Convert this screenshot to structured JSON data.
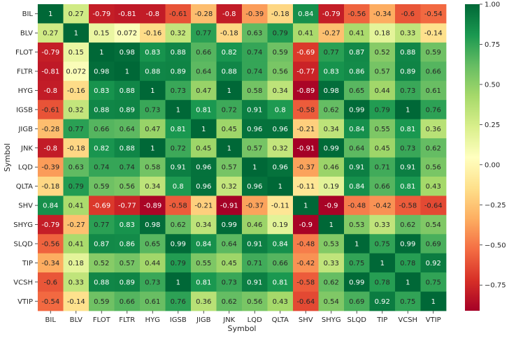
{
  "chart_data": {
    "type": "heatmap",
    "title": "",
    "xlabel": "Symbol",
    "ylabel": "Symbol",
    "categories": [
      "BIL",
      "BLV",
      "FLOT",
      "FLTR",
      "HYG",
      "IGSB",
      "JIGB",
      "JNK",
      "LQD",
      "QLTA",
      "SHV",
      "SHYG",
      "SLQD",
      "TIP",
      "VCSH",
      "VTIP"
    ],
    "values": [
      [
        "1",
        "0.27",
        "-0.79",
        "-0.81",
        "-0.8",
        "-0.61",
        "-0.28",
        "-0.8",
        "-0.39",
        "-0.18",
        "0.84",
        "-0.79",
        "-0.56",
        "-0.34",
        "-0.6",
        "-0.54"
      ],
      [
        "0.27",
        "1",
        "0.15",
        "0.072",
        "-0.16",
        "0.32",
        "0.77",
        "-0.18",
        "0.63",
        "0.79",
        "0.41",
        "-0.27",
        "0.41",
        "0.18",
        "0.33",
        "-0.14"
      ],
      [
        "-0.79",
        "0.15",
        "1",
        "0.98",
        "0.83",
        "0.88",
        "0.66",
        "0.82",
        "0.74",
        "0.59",
        "-0.69",
        "0.77",
        "0.87",
        "0.52",
        "0.88",
        "0.59"
      ],
      [
        "-0.81",
        "0.072",
        "0.98",
        "1",
        "0.88",
        "0.89",
        "0.64",
        "0.88",
        "0.74",
        "0.56",
        "-0.77",
        "0.83",
        "0.86",
        "0.57",
        "0.89",
        "0.66"
      ],
      [
        "-0.8",
        "-0.16",
        "0.83",
        "0.88",
        "1",
        "0.73",
        "0.47",
        "1",
        "0.58",
        "0.34",
        "-0.89",
        "0.98",
        "0.65",
        "0.44",
        "0.73",
        "0.61"
      ],
      [
        "-0.61",
        "0.32",
        "0.88",
        "0.89",
        "0.73",
        "1",
        "0.81",
        "0.72",
        "0.91",
        "0.8",
        "-0.58",
        "0.62",
        "0.99",
        "0.79",
        "1",
        "0.76"
      ],
      [
        "-0.28",
        "0.77",
        "0.66",
        "0.64",
        "0.47",
        "0.81",
        "1",
        "0.45",
        "0.96",
        "0.96",
        "-0.21",
        "0.34",
        "0.84",
        "0.55",
        "0.81",
        "0.36"
      ],
      [
        "-0.8",
        "-0.18",
        "0.82",
        "0.88",
        "1",
        "0.72",
        "0.45",
        "1",
        "0.57",
        "0.32",
        "-0.91",
        "0.99",
        "0.64",
        "0.45",
        "0.73",
        "0.62"
      ],
      [
        "-0.39",
        "0.63",
        "0.74",
        "0.74",
        "0.58",
        "0.91",
        "0.96",
        "0.57",
        "1",
        "0.96",
        "-0.37",
        "0.46",
        "0.91",
        "0.71",
        "0.91",
        "0.56"
      ],
      [
        "-0.18",
        "0.79",
        "0.59",
        "0.56",
        "0.34",
        "0.8",
        "0.96",
        "0.32",
        "0.96",
        "1",
        "-0.11",
        "0.19",
        "0.84",
        "0.66",
        "0.81",
        "0.43"
      ],
      [
        "0.84",
        "0.41",
        "-0.69",
        "-0.77",
        "-0.89",
        "-0.58",
        "-0.21",
        "-0.91",
        "-0.37",
        "-0.11",
        "1",
        "-0.9",
        "-0.48",
        "-0.42",
        "-0.58",
        "-0.64"
      ],
      [
        "-0.79",
        "-0.27",
        "0.77",
        "0.83",
        "0.98",
        "0.62",
        "0.34",
        "0.99",
        "0.46",
        "0.19",
        "-0.9",
        "1",
        "0.53",
        "0.33",
        "0.62",
        "0.54"
      ],
      [
        "-0.56",
        "0.41",
        "0.87",
        "0.86",
        "0.65",
        "0.99",
        "0.84",
        "0.64",
        "0.91",
        "0.84",
        "-0.48",
        "0.53",
        "1",
        "0.75",
        "0.99",
        "0.69"
      ],
      [
        "-0.34",
        "0.18",
        "0.52",
        "0.57",
        "0.44",
        "0.79",
        "0.55",
        "0.45",
        "0.71",
        "0.66",
        "-0.42",
        "0.33",
        "0.75",
        "1",
        "0.78",
        "0.92"
      ],
      [
        "-0.6",
        "0.33",
        "0.88",
        "0.89",
        "0.73",
        "1",
        "0.81",
        "0.73",
        "0.91",
        "0.81",
        "-0.58",
        "0.62",
        "0.99",
        "0.78",
        "1",
        "0.75"
      ],
      [
        "-0.54",
        "-0.14",
        "0.59",
        "0.66",
        "0.61",
        "0.76",
        "0.36",
        "0.62",
        "0.56",
        "0.43",
        "-0.64",
        "0.54",
        "0.69",
        "0.92",
        "0.75",
        "1"
      ]
    ],
    "vmin": -0.91,
    "vmax": 1.0,
    "colormap": "RdYlGn",
    "colorbar_ticks": [
      "1.00",
      "0.75",
      "0.50",
      "0.25",
      "0.00",
      "−0.25",
      "−0.50",
      "−0.75"
    ],
    "colorbar_tick_values": [
      1.0,
      0.75,
      0.5,
      0.25,
      0.0,
      -0.25,
      -0.5,
      -0.75
    ]
  }
}
